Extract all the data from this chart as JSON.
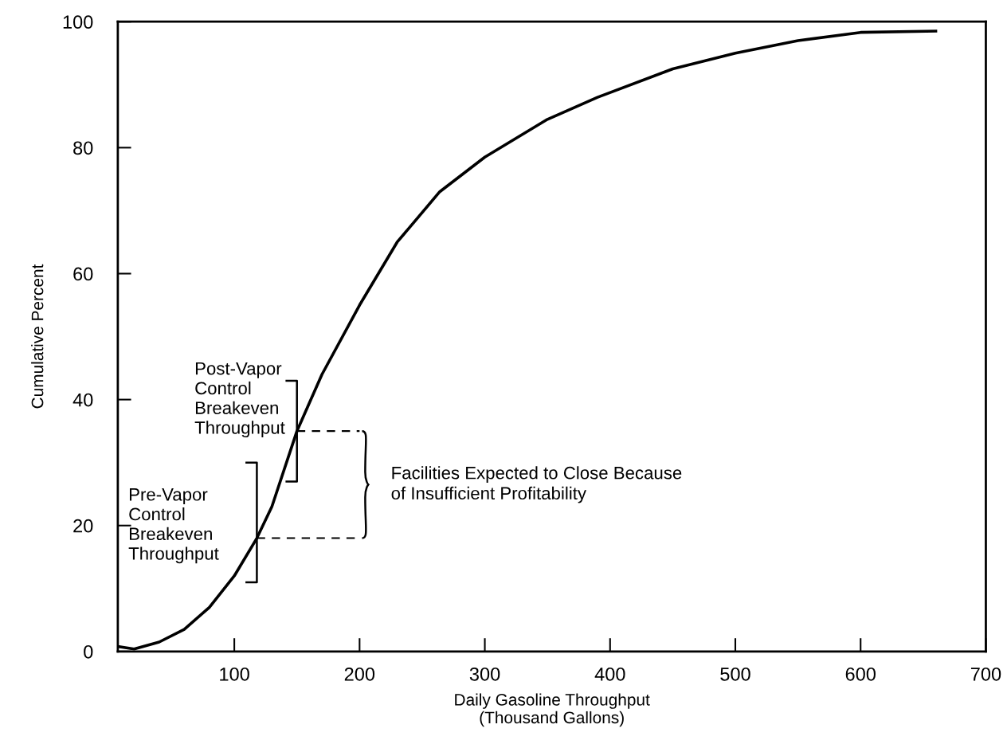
{
  "chart_data": {
    "type": "line",
    "xlabel": "Daily Gasoline Throughput\n(Thousand Gallons)",
    "ylabel": "Cumulative Percent",
    "x": [
      7,
      20,
      40,
      60,
      80,
      100,
      118,
      130,
      150,
      170,
      200,
      230,
      264,
      300,
      350,
      390,
      450,
      500,
      550,
      600,
      660
    ],
    "series": [
      {
        "color": "#000000",
        "values": [
          0.8,
          0.4,
          1.5,
          3.5,
          7,
          12,
          18,
          23,
          35,
          44,
          55,
          65,
          73,
          78.5,
          84.5,
          88,
          92.5,
          95,
          97,
          98.3,
          98.5
        ]
      }
    ],
    "xlim": [
      7,
      700
    ],
    "ylim": [
      0,
      100
    ],
    "xticks": [
      100,
      200,
      300,
      400,
      500,
      600,
      700
    ],
    "yticks": [
      0,
      20,
      40,
      60,
      80,
      100
    ],
    "grid": false,
    "legend": false,
    "marker": "none",
    "line_style": "solid",
    "annotations": [
      {
        "text": "Post-Vapor\nControl\nBreakeven\nThroughput",
        "x": 150,
        "y": 35
      },
      {
        "text": "Pre-Vapor\nControl\nBreakeven\nThroughput",
        "x": 118,
        "y": 18
      },
      "Facilities Expected to Close Because\nof Insufficient Profitability"
    ]
  }
}
